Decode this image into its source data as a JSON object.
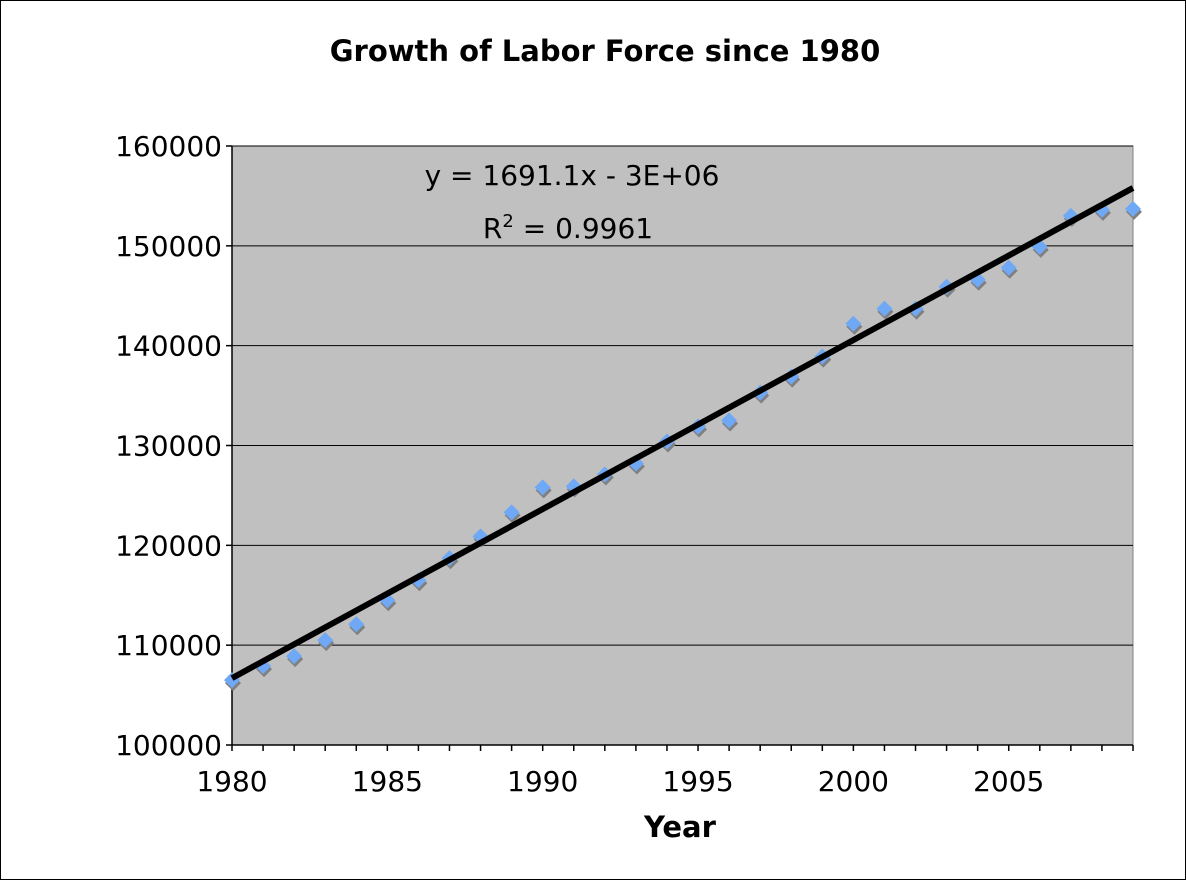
{
  "chart_data": {
    "type": "scatter",
    "title": "Growth of Labor Force since 1980",
    "xlabel": "Year",
    "ylabel": "",
    "xlim": [
      1980,
      2009
    ],
    "ylim": [
      100000,
      160000
    ],
    "x_ticks": [
      "1980",
      "1985",
      "1990",
      "1995",
      "2000",
      "2005"
    ],
    "y_ticks": [
      "100000",
      "110000",
      "120000",
      "130000",
      "140000",
      "150000",
      "160000"
    ],
    "grid": "horizontal",
    "legend": "none",
    "colors": {
      "plot_bg": "#c0c0c0",
      "point": "#6fa8f5",
      "point_shadow": "#808080",
      "trendline": "#000000",
      "gridline": "#000000"
    },
    "series": [
      {
        "x": [
          1980,
          1981,
          1982,
          1983,
          1984,
          1985,
          1986,
          1987,
          1988,
          1989,
          1990,
          1991,
          1992,
          1993,
          1994,
          1995,
          1996,
          1997,
          1998,
          1999,
          2000,
          2001,
          2002,
          2003,
          2004,
          2005,
          2006,
          2007,
          2008,
          2009
        ],
        "y": [
          106500,
          107900,
          108900,
          110500,
          112100,
          114500,
          116500,
          118700,
          120900,
          123300,
          125800,
          125900,
          127100,
          128200,
          130400,
          131900,
          132500,
          135300,
          136900,
          138900,
          142200,
          143700,
          143700,
          145900,
          146600,
          147800,
          149900,
          153000,
          153600,
          153700
        ]
      }
    ],
    "trendline": {
      "type": "linear",
      "start": [
        1980,
        106700
      ],
      "end": [
        2009,
        155800
      ],
      "equation_text": "y = 1691.1x - 3E+06",
      "r2_prefix": "R",
      "r2_sup": "2",
      "r2_value": " = 0.9961"
    }
  }
}
